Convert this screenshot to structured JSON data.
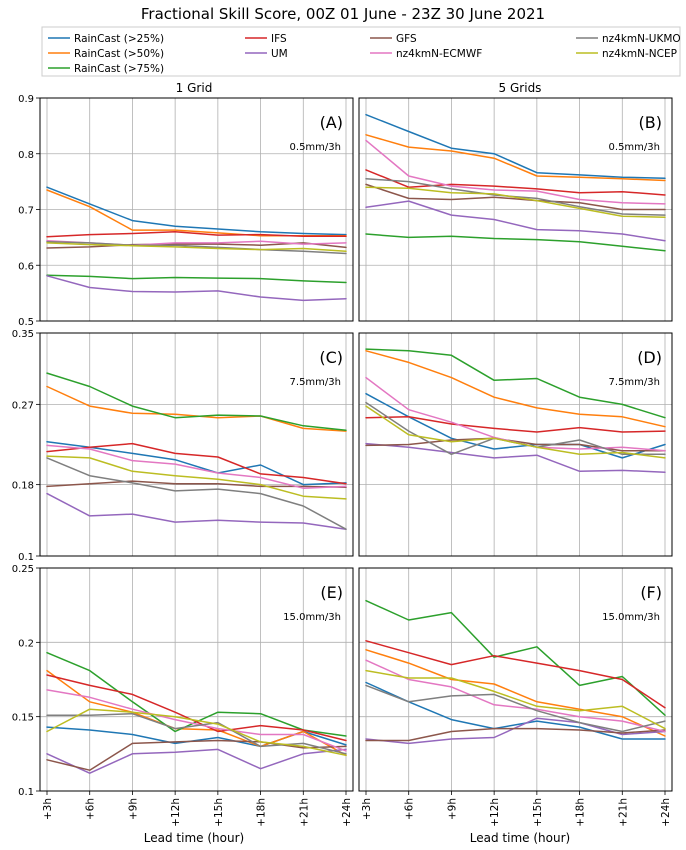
{
  "title": "Fractional Skill Score, 00Z 01 June - 23Z 30 June 2021",
  "xlabel": "Lead time (hour)",
  "column_titles": [
    "1 Grid",
    "5 Grids"
  ],
  "chart_data": {
    "type": "line",
    "x": [
      "+3h",
      "+6h",
      "+9h",
      "+12h",
      "+15h",
      "+18h",
      "+21h",
      "+24h"
    ],
    "xlabel": "Lead time (hour)",
    "legend": {
      "placement": "top",
      "entries": [
        {
          "name": "RainCast (>25%)",
          "color": "#1f77b4"
        },
        {
          "name": "RainCast (>50%)",
          "color": "#ff7f0e"
        },
        {
          "name": "RainCast (>75%)",
          "color": "#2ca02c"
        },
        {
          "name": "IFS",
          "color": "#d62728"
        },
        {
          "name": "UM",
          "color": "#9467bd"
        },
        {
          "name": "GFS",
          "color": "#8c564b"
        },
        {
          "name": "nz4kmN-ECMWF",
          "color": "#e377c2"
        },
        {
          "name": "nz4kmN-UKMO",
          "color": "#7f7f7f"
        },
        {
          "name": "nz4kmN-NCEP",
          "color": "#bcbd22"
        }
      ]
    },
    "rows": [
      {
        "ylim": [
          0.5,
          0.9
        ],
        "yticks": [
          0.5,
          0.6,
          0.7,
          0.8,
          0.9
        ],
        "ytick_labels": [
          "0.5",
          "0.6",
          "0.7",
          "0.8",
          "0.9"
        ],
        "threshold": "0.5mm/3h"
      },
      {
        "ylim": [
          0.1,
          0.35
        ],
        "yticks": [
          0.1,
          0.18,
          0.27,
          0.35
        ],
        "ytick_labels": [
          "0.1",
          "0.18",
          "0.27",
          "0.35"
        ],
        "threshold": "7.5mm/3h"
      },
      {
        "ylim": [
          0.1,
          0.25
        ],
        "yticks": [
          0.1,
          0.15,
          0.2,
          0.25
        ],
        "ytick_labels": [
          "0.1",
          "0.15",
          "0.2",
          "0.25"
        ],
        "threshold": "15.0mm/3h"
      }
    ],
    "panels": [
      {
        "label": "(A)",
        "row": 0,
        "col": 0,
        "series": [
          {
            "name": "RainCast (>25%)",
            "values": [
              0.74,
              0.71,
              0.68,
              0.67,
              0.665,
              0.66,
              0.657,
              0.655
            ]
          },
          {
            "name": "RainCast (>50%)",
            "values": [
              0.735,
              0.705,
              0.663,
              0.663,
              0.658,
              0.653,
              0.653,
              0.653
            ]
          },
          {
            "name": "RainCast (>75%)",
            "values": [
              0.582,
              0.58,
              0.576,
              0.578,
              0.577,
              0.576,
              0.572,
              0.569
            ]
          },
          {
            "name": "IFS",
            "values": [
              0.651,
              0.655,
              0.657,
              0.66,
              0.654,
              0.655,
              0.652,
              0.652
            ]
          },
          {
            "name": "UM",
            "values": [
              0.581,
              0.56,
              0.553,
              0.552,
              0.554,
              0.543,
              0.537,
              0.54
            ]
          },
          {
            "name": "GFS",
            "values": [
              0.631,
              0.633,
              0.637,
              0.638,
              0.638,
              0.636,
              0.64,
              0.632
            ]
          },
          {
            "name": "nz4kmN-ECMWF",
            "values": [
              0.644,
              0.64,
              0.636,
              0.64,
              0.64,
              0.643,
              0.638,
              0.64
            ]
          },
          {
            "name": "nz4kmN-UKMO",
            "values": [
              0.642,
              0.64,
              0.636,
              0.636,
              0.632,
              0.628,
              0.625,
              0.621
            ]
          },
          {
            "name": "nz4kmN-NCEP",
            "values": [
              0.64,
              0.637,
              0.635,
              0.633,
              0.63,
              0.628,
              0.63,
              0.625
            ]
          }
        ]
      },
      {
        "label": "(B)",
        "row": 0,
        "col": 1,
        "series": [
          {
            "name": "RainCast (>25%)",
            "values": [
              0.87,
              0.84,
              0.81,
              0.8,
              0.766,
              0.762,
              0.758,
              0.756
            ]
          },
          {
            "name": "RainCast (>50%)",
            "values": [
              0.834,
              0.812,
              0.805,
              0.792,
              0.76,
              0.758,
              0.755,
              0.752
            ]
          },
          {
            "name": "RainCast (>75%)",
            "values": [
              0.656,
              0.65,
              0.652,
              0.648,
              0.646,
              0.642,
              0.634,
              0.626
            ]
          },
          {
            "name": "IFS",
            "values": [
              0.771,
              0.74,
              0.745,
              0.742,
              0.737,
              0.73,
              0.732,
              0.726
            ]
          },
          {
            "name": "UM",
            "values": [
              0.704,
              0.715,
              0.69,
              0.682,
              0.664,
              0.662,
              0.656,
              0.644
            ]
          },
          {
            "name": "GFS",
            "values": [
              0.745,
              0.72,
              0.718,
              0.722,
              0.716,
              0.712,
              0.7,
              0.7
            ]
          },
          {
            "name": "nz4kmN-ECMWF",
            "values": [
              0.824,
              0.76,
              0.742,
              0.735,
              0.733,
              0.718,
              0.712,
              0.71
            ]
          },
          {
            "name": "nz4kmN-UKMO",
            "values": [
              0.755,
              0.75,
              0.737,
              0.726,
              0.72,
              0.705,
              0.692,
              0.69
            ]
          },
          {
            "name": "nz4kmN-NCEP",
            "values": [
              0.74,
              0.738,
              0.73,
              0.728,
              0.716,
              0.702,
              0.688,
              0.686
            ]
          }
        ]
      },
      {
        "label": "(C)",
        "row": 1,
        "col": 0,
        "series": [
          {
            "name": "RainCast (>25%)",
            "values": [
              0.228,
              0.222,
              0.215,
              0.208,
              0.193,
              0.202,
              0.18,
              0.182
            ]
          },
          {
            "name": "RainCast (>50%)",
            "values": [
              0.29,
              0.268,
              0.26,
              0.259,
              0.255,
              0.257,
              0.243,
              0.24
            ]
          },
          {
            "name": "RainCast (>75%)",
            "values": [
              0.305,
              0.29,
              0.268,
              0.255,
              0.258,
              0.257,
              0.246,
              0.241
            ]
          },
          {
            "name": "IFS",
            "values": [
              0.217,
              0.222,
              0.226,
              0.215,
              0.211,
              0.192,
              0.188,
              0.181
            ]
          },
          {
            "name": "UM",
            "values": [
              0.17,
              0.145,
              0.147,
              0.138,
              0.14,
              0.138,
              0.137,
              0.13
            ]
          },
          {
            "name": "GFS",
            "values": [
              0.178,
              0.181,
              0.184,
              0.181,
              0.181,
              0.178,
              0.178,
              0.177
            ]
          },
          {
            "name": "nz4kmN-ECMWF",
            "values": [
              0.224,
              0.22,
              0.207,
              0.203,
              0.193,
              0.188,
              0.176,
              0.178
            ]
          },
          {
            "name": "nz4kmN-UKMO",
            "values": [
              0.21,
              0.19,
              0.182,
              0.173,
              0.175,
              0.17,
              0.156,
              0.13
            ]
          },
          {
            "name": "nz4kmN-NCEP",
            "values": [
              0.212,
              0.21,
              0.195,
              0.19,
              0.186,
              0.18,
              0.167,
              0.164
            ]
          }
        ]
      },
      {
        "label": "(D)",
        "row": 1,
        "col": 1,
        "series": [
          {
            "name": "RainCast (>25%)",
            "values": [
              0.282,
              0.256,
              0.232,
              0.22,
              0.225,
              0.225,
              0.21,
              0.225
            ]
          },
          {
            "name": "RainCast (>50%)",
            "values": [
              0.33,
              0.317,
              0.3,
              0.278,
              0.266,
              0.259,
              0.256,
              0.245
            ]
          },
          {
            "name": "RainCast (>75%)",
            "values": [
              0.332,
              0.33,
              0.325,
              0.297,
              0.299,
              0.278,
              0.27,
              0.255
            ]
          },
          {
            "name": "IFS",
            "values": [
              0.255,
              0.256,
              0.248,
              0.243,
              0.239,
              0.244,
              0.239,
              0.24
            ]
          },
          {
            "name": "UM",
            "values": [
              0.226,
              0.222,
              0.216,
              0.21,
              0.213,
              0.195,
              0.196,
              0.194
            ]
          },
          {
            "name": "GFS",
            "values": [
              0.224,
              0.225,
              0.23,
              0.232,
              0.225,
              0.225,
              0.218,
              0.218
            ]
          },
          {
            "name": "nz4kmN-ECMWF",
            "values": [
              0.3,
              0.264,
              0.25,
              0.233,
              0.222,
              0.22,
              0.222,
              0.218
            ]
          },
          {
            "name": "nz4kmN-UKMO",
            "values": [
              0.272,
              0.24,
              0.214,
              0.232,
              0.222,
              0.23,
              0.214,
              0.214
            ]
          },
          {
            "name": "nz4kmN-NCEP",
            "values": [
              0.268,
              0.236,
              0.228,
              0.232,
              0.222,
              0.214,
              0.216,
              0.21
            ]
          }
        ]
      },
      {
        "label": "(E)",
        "row": 2,
        "col": 0,
        "series": [
          {
            "name": "RainCast (>25%)",
            "values": [
              0.143,
              0.141,
              0.138,
              0.132,
              0.136,
              0.13,
              0.14,
              0.131
            ]
          },
          {
            "name": "RainCast (>50%)",
            "values": [
              0.181,
              0.16,
              0.153,
              0.142,
              0.141,
              0.13,
              0.14,
              0.124
            ]
          },
          {
            "name": "RainCast (>75%)",
            "values": [
              0.193,
              0.181,
              0.16,
              0.14,
              0.153,
              0.152,
              0.141,
              0.137
            ]
          },
          {
            "name": "IFS",
            "values": [
              0.178,
              0.171,
              0.165,
              0.153,
              0.14,
              0.144,
              0.141,
              0.134
            ]
          },
          {
            "name": "UM",
            "values": [
              0.125,
              0.112,
              0.125,
              0.126,
              0.128,
              0.115,
              0.125,
              0.128
            ]
          },
          {
            "name": "GFS",
            "values": [
              0.121,
              0.114,
              0.132,
              0.133,
              0.134,
              0.133,
              0.129,
              0.13
            ]
          },
          {
            "name": "nz4kmN-ECMWF",
            "values": [
              0.168,
              0.163,
              0.155,
              0.148,
              0.142,
              0.138,
              0.138,
              0.127
            ]
          },
          {
            "name": "nz4kmN-UKMO",
            "values": [
              0.151,
              0.151,
              0.152,
              0.142,
              0.146,
              0.13,
              0.132,
              0.125
            ]
          },
          {
            "name": "nz4kmN-NCEP",
            "values": [
              0.14,
              0.155,
              0.153,
              0.15,
              0.145,
              0.133,
              0.13,
              0.124
            ]
          }
        ]
      },
      {
        "label": "(F)",
        "row": 2,
        "col": 1,
        "series": [
          {
            "name": "RainCast (>25%)",
            "values": [
              0.173,
              0.16,
              0.148,
              0.142,
              0.147,
              0.143,
              0.135,
              0.135
            ]
          },
          {
            "name": "RainCast (>50%)",
            "values": [
              0.195,
              0.186,
              0.175,
              0.172,
              0.16,
              0.155,
              0.15,
              0.137
            ]
          },
          {
            "name": "RainCast (>75%)",
            "values": [
              0.228,
              0.215,
              0.22,
              0.19,
              0.197,
              0.171,
              0.177,
              0.151
            ]
          },
          {
            "name": "IFS",
            "values": [
              0.201,
              0.193,
              0.185,
              0.191,
              0.186,
              0.181,
              0.175,
              0.156
            ]
          },
          {
            "name": "UM",
            "values": [
              0.135,
              0.132,
              0.135,
              0.136,
              0.149,
              0.146,
              0.138,
              0.14
            ]
          },
          {
            "name": "GFS",
            "values": [
              0.134,
              0.134,
              0.14,
              0.142,
              0.142,
              0.141,
              0.139,
              0.141
            ]
          },
          {
            "name": "nz4kmN-ECMWF",
            "values": [
              0.188,
              0.175,
              0.17,
              0.158,
              0.155,
              0.15,
              0.147,
              0.14
            ]
          },
          {
            "name": "nz4kmN-UKMO",
            "values": [
              0.171,
              0.16,
              0.164,
              0.165,
              0.154,
              0.146,
              0.14,
              0.147
            ]
          },
          {
            "name": "nz4kmN-NCEP",
            "values": [
              0.181,
              0.176,
              0.176,
              0.167,
              0.157,
              0.154,
              0.157,
              0.142
            ]
          }
        ]
      }
    ]
  }
}
